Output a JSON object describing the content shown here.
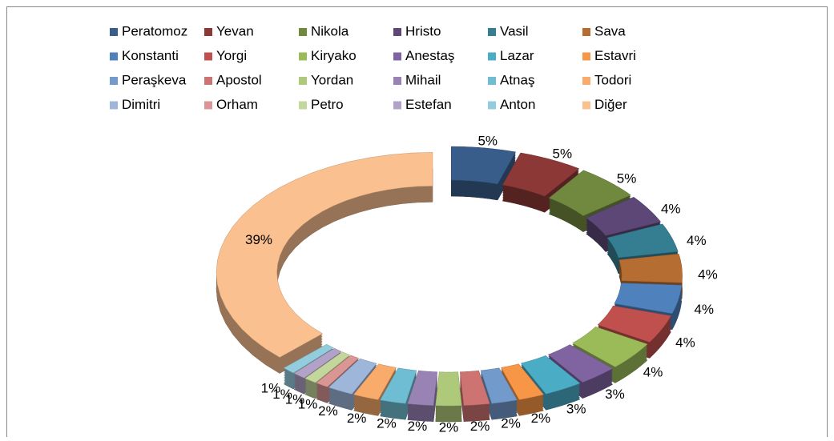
{
  "chart_data": {
    "type": "pie",
    "three_d": true,
    "exploded": true,
    "categories": [
      "Peratomoz",
      "Yevan",
      "Nikola",
      "Hristo",
      "Vasil",
      "Sava",
      "Konstanti",
      "Yorgi",
      "Kiryako",
      "Anestaş",
      "Lazar",
      "Estavri",
      "Peraşkeva",
      "Apostol",
      "Yordan",
      "Mihail",
      "Atnaş",
      "Todori",
      "Dimitri",
      "Orham",
      "Petro",
      "Estefan",
      "Anton",
      "Diğer"
    ],
    "values": [
      5,
      5,
      5,
      4,
      4,
      4,
      4,
      4,
      4,
      3,
      3,
      2,
      2,
      2,
      2,
      2,
      2,
      2,
      2,
      1,
      1,
      1,
      1,
      39
    ],
    "value_labels": [
      "5%",
      "5%",
      "5%",
      "4%",
      "4%",
      "4%",
      "4%",
      "4%",
      "4%",
      "3%",
      "3%",
      "2%",
      "2%",
      "2%",
      "2%",
      "2%",
      "2%",
      "2%",
      "2%",
      "1%",
      "1%",
      "1%",
      "1%",
      "39%"
    ],
    "colors": [
      "#385d8a",
      "#8c3836",
      "#71893f",
      "#5c4776",
      "#357d91",
      "#b66d31",
      "#4f81bd",
      "#c0504d",
      "#9bbb59",
      "#8064a2",
      "#4bacc6",
      "#f79646",
      "#729aca",
      "#cd7371",
      "#afc97a",
      "#9983b5",
      "#6fbdd2",
      "#f9ab6b",
      "#9fb6db",
      "#d99694",
      "#c3d69b",
      "#b3a2c7",
      "#93cddd",
      "#fac090"
    ],
    "legend": "top"
  }
}
